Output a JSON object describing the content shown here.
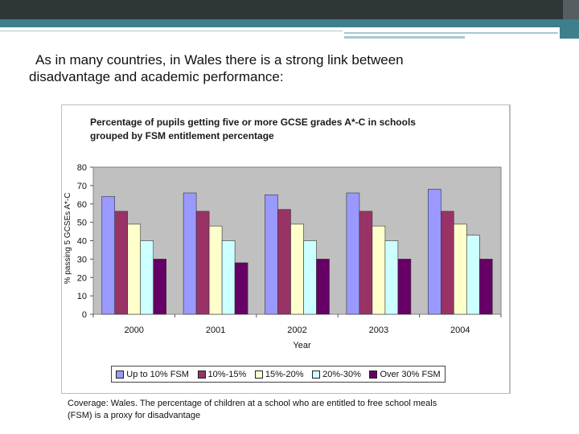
{
  "slide": {
    "headline_line1": "As in many countries, in Wales there is a strong link between",
    "headline_line2": "disadvantage and academic performance:",
    "caption_line1": "Coverage: Wales. The percentage of children at a school who are entitled to free school meals",
    "caption_line2": "(FSM) is a proxy for disadvantage",
    "colors": {
      "top_band": "#2f3638",
      "accent": "#3d7f8a"
    }
  },
  "chart_data": {
    "type": "bar",
    "title_line1": "Percentage of pupils getting five or more GCSE grades A*-C in schools",
    "title_line2": "grouped by FSM entitlement percentage",
    "xlabel": "Year",
    "ylabel": "% passing 5 GCSEs A*-C",
    "ylim": [
      0,
      80
    ],
    "yticks": [
      0,
      10,
      20,
      30,
      40,
      50,
      60,
      70,
      80
    ],
    "grid": false,
    "legend_position": "bottom",
    "categories": [
      "2000",
      "2001",
      "2002",
      "2003",
      "2004"
    ],
    "series": [
      {
        "name": "Up to 10% FSM",
        "color": "#9999ff",
        "values": [
          64,
          66,
          65,
          66,
          68
        ]
      },
      {
        "name": "10%-15%",
        "color": "#993366",
        "values": [
          56,
          56,
          57,
          56,
          56
        ]
      },
      {
        "name": "15%-20%",
        "color": "#ffffcc",
        "values": [
          49,
          48,
          49,
          48,
          49
        ]
      },
      {
        "name": "20%-30%",
        "color": "#ccffff",
        "values": [
          40,
          40,
          40,
          40,
          43
        ]
      },
      {
        "name": "Over 30% FSM",
        "color": "#660066",
        "values": [
          30,
          28,
          30,
          30,
          30
        ]
      }
    ]
  }
}
